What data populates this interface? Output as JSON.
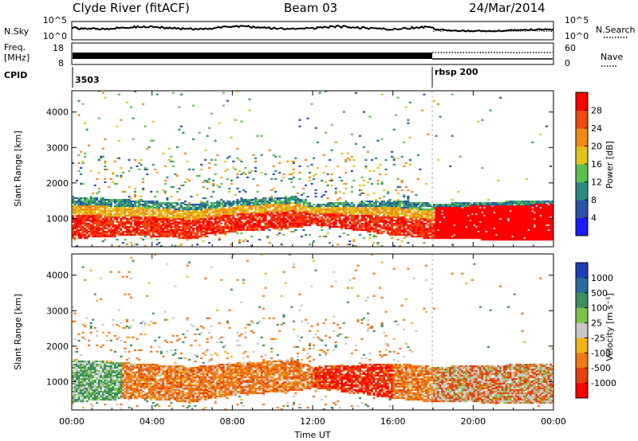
{
  "header": {
    "station": "Clyde River (fitACF)",
    "beam": "Beam 03",
    "date": "24/Mar/2014"
  },
  "strip1": {
    "left_label": "N.Sky",
    "right_label": "N.Search",
    "left_ticks": [
      "10^5",
      "10^0"
    ],
    "right_ticks": [
      "10^5",
      "10^0"
    ]
  },
  "strip2": {
    "left_label_1": "Freq.",
    "left_label_2": "[MHz]",
    "right_label": "Nave",
    "left_ticks": [
      "18",
      "8"
    ],
    "right_ticks": [
      "60",
      "0"
    ]
  },
  "cpid": {
    "label": "CPID",
    "segments": [
      {
        "start_hour": 0,
        "name": "3503"
      },
      {
        "start_hour": 18,
        "name": "rbsp 200"
      }
    ]
  },
  "chart_data": [
    {
      "type": "heatmap",
      "name": "Power",
      "xlabel": "",
      "ylabel": "Slant Range [km]",
      "xlim": [
        0,
        24
      ],
      "ylim": [
        200,
        4600
      ],
      "yticks": [
        "1000",
        "2000",
        "3000",
        "4000"
      ],
      "colorbar_label": "Power [dB]",
      "colorbar_ticks": [
        "4",
        "8",
        "12",
        "16",
        "20",
        "24",
        "28"
      ],
      "colors": [
        "#1a1aff",
        "#2a53a8",
        "#2a8c7d",
        "#5bbf4f",
        "#e2c21a",
        "#f08a15",
        "#ef4a10",
        "#ff0000"
      ],
      "main_band": [
        {
          "hour": 0,
          "low": 400,
          "high": 1600
        },
        {
          "hour": 3,
          "low": 500,
          "high": 1500
        },
        {
          "hour": 6,
          "low": 400,
          "high": 1400
        },
        {
          "hour": 8,
          "low": 600,
          "high": 1500
        },
        {
          "hour": 11,
          "low": 700,
          "high": 1600
        },
        {
          "hour": 12,
          "low": 800,
          "high": 1400
        },
        {
          "hour": 16,
          "low": 500,
          "high": 1500
        },
        {
          "hour": 18,
          "low": 400,
          "high": 1400
        },
        {
          "hour": 24,
          "low": 350,
          "high": 1500
        }
      ]
    },
    {
      "type": "heatmap",
      "name": "Velocity",
      "xlabel": "Time UT",
      "ylabel": "Slant Range [km]",
      "xlim": [
        0,
        24
      ],
      "ylim": [
        200,
        4600
      ],
      "yticks": [
        "1000",
        "2000",
        "3000",
        "4000"
      ],
      "xticks": [
        "00:00",
        "04:00",
        "08:00",
        "12:00",
        "16:00",
        "20:00",
        "00:00"
      ],
      "colorbar_label": "Velocity [m s⁻¹]",
      "colorbar_ticks": [
        "1000",
        "500",
        "100",
        "25",
        "-25",
        "-100",
        "-500",
        "-1000"
      ],
      "colors": [
        "#1f3fb7",
        "#2d6aa0",
        "#3a8f5a",
        "#7dc24a",
        "#c8c8c8",
        "#f2b21a",
        "#ef7a12",
        "#e6400e",
        "#ff0000"
      ]
    }
  ]
}
